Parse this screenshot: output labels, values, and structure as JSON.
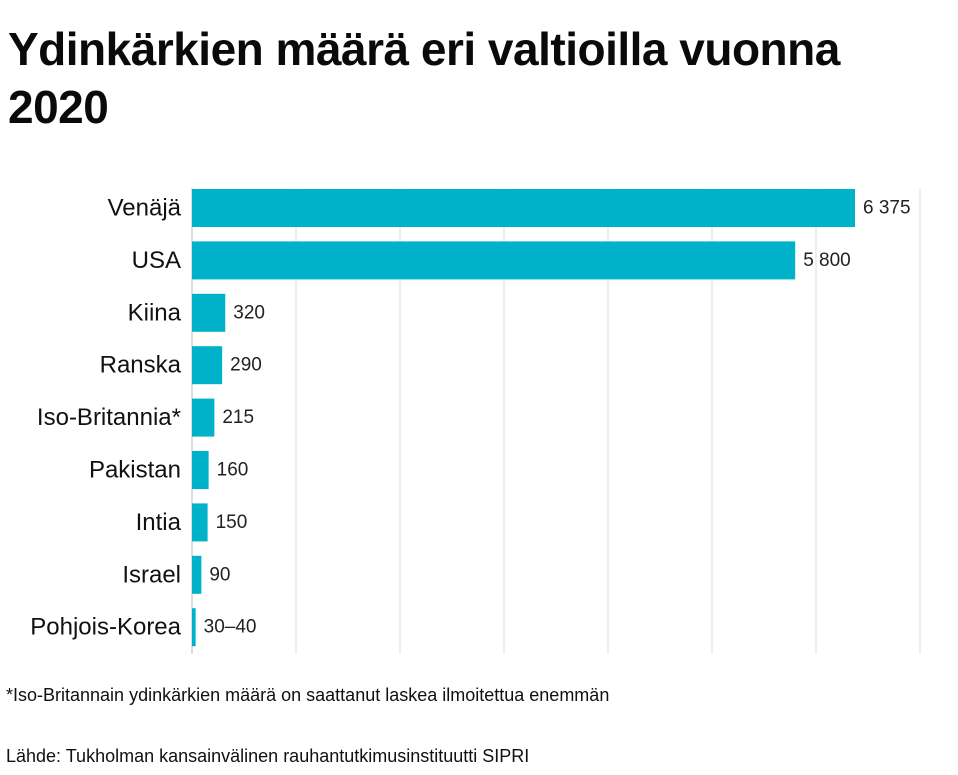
{
  "chart_data": {
    "type": "bar",
    "orientation": "horizontal",
    "title": "Ydinkärkien määrä eri valtioilla vuonna 2020",
    "xlabel": "",
    "ylabel": "",
    "categories": [
      "Venäjä",
      "USA",
      "Kiina",
      "Ranska",
      "Iso-Britannia*",
      "Pakistan",
      "Intia",
      "Israel",
      "Pohjois-Korea"
    ],
    "values": [
      6375,
      5800,
      320,
      290,
      215,
      160,
      150,
      90,
      35
    ],
    "value_labels": [
      "6 375",
      "5 800",
      "320",
      "290",
      "215",
      "160",
      "150",
      "90",
      "30–40"
    ],
    "xlim": [
      0,
      7000
    ],
    "grid": true,
    "legend": "none",
    "bar_color": "#00b2c9",
    "grid_color": "#dddddd"
  },
  "footnote": "*Iso-Britannain ydinkärkien määrä on saattanut laskea ilmoitettua enemmän",
  "source": "Lähde: Tukholman kansainvälinen rauhantutkimusinstituutti SIPRI"
}
